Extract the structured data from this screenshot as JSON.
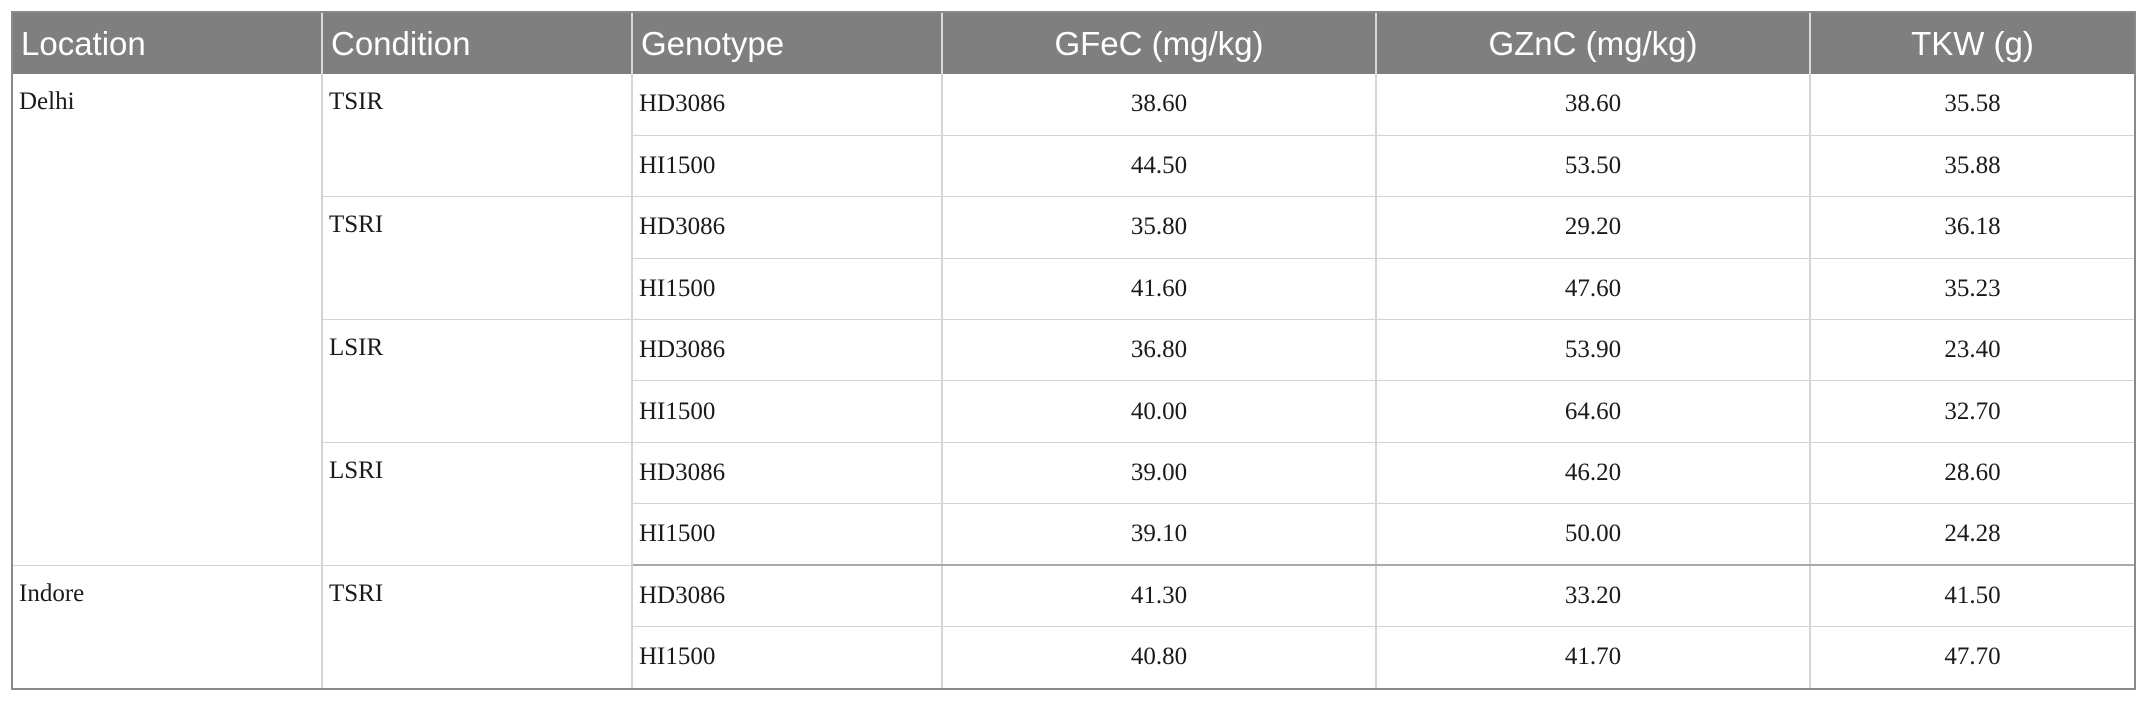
{
  "headers": {
    "location": "Location",
    "condition": "Condition",
    "genotype": "Genotype",
    "gfec": "GFeC (mg/kg)",
    "gznc": "GZnC (mg/kg)",
    "tkw": "TKW (g)"
  },
  "rows": [
    {
      "location": "Delhi",
      "condition": "TSIR",
      "genotype": "HD3086",
      "gfec": "38.60",
      "gznc": "38.60",
      "tkw": "35.58"
    },
    {
      "location": "",
      "condition": "",
      "genotype": "HI1500",
      "gfec": "44.50",
      "gznc": "53.50",
      "tkw": "35.88"
    },
    {
      "location": "",
      "condition": "TSRI",
      "genotype": "HD3086",
      "gfec": "35.80",
      "gznc": "29.20",
      "tkw": "36.18"
    },
    {
      "location": "",
      "condition": "",
      "genotype": "HI1500",
      "gfec": "41.60",
      "gznc": "47.60",
      "tkw": "35.23"
    },
    {
      "location": "",
      "condition": "LSIR",
      "genotype": "HD3086",
      "gfec": "36.80",
      "gznc": "53.90",
      "tkw": "23.40"
    },
    {
      "location": "",
      "condition": "",
      "genotype": "HI1500",
      "gfec": "40.00",
      "gznc": "64.60",
      "tkw": "32.70"
    },
    {
      "location": "",
      "condition": "LSRI",
      "genotype": "HD3086",
      "gfec": "39.00",
      "gznc": "46.20",
      "tkw": "28.60"
    },
    {
      "location": "",
      "condition": "",
      "genotype": "HI1500",
      "gfec": "39.10",
      "gznc": "50.00",
      "tkw": "24.28"
    },
    {
      "location": "Indore",
      "condition": "TSRI",
      "genotype": "HD3086",
      "gfec": "41.30",
      "gznc": "33.20",
      "tkw": "41.50"
    },
    {
      "location": "",
      "condition": "",
      "genotype": "HI1500",
      "gfec": "40.80",
      "gznc": "41.70",
      "tkw": "47.70"
    }
  ],
  "colors": {
    "header_bg": "#7f7f7f",
    "header_text": "#ffffff",
    "grid": "#d4d4d4",
    "outer_border": "#8a8a8a"
  }
}
